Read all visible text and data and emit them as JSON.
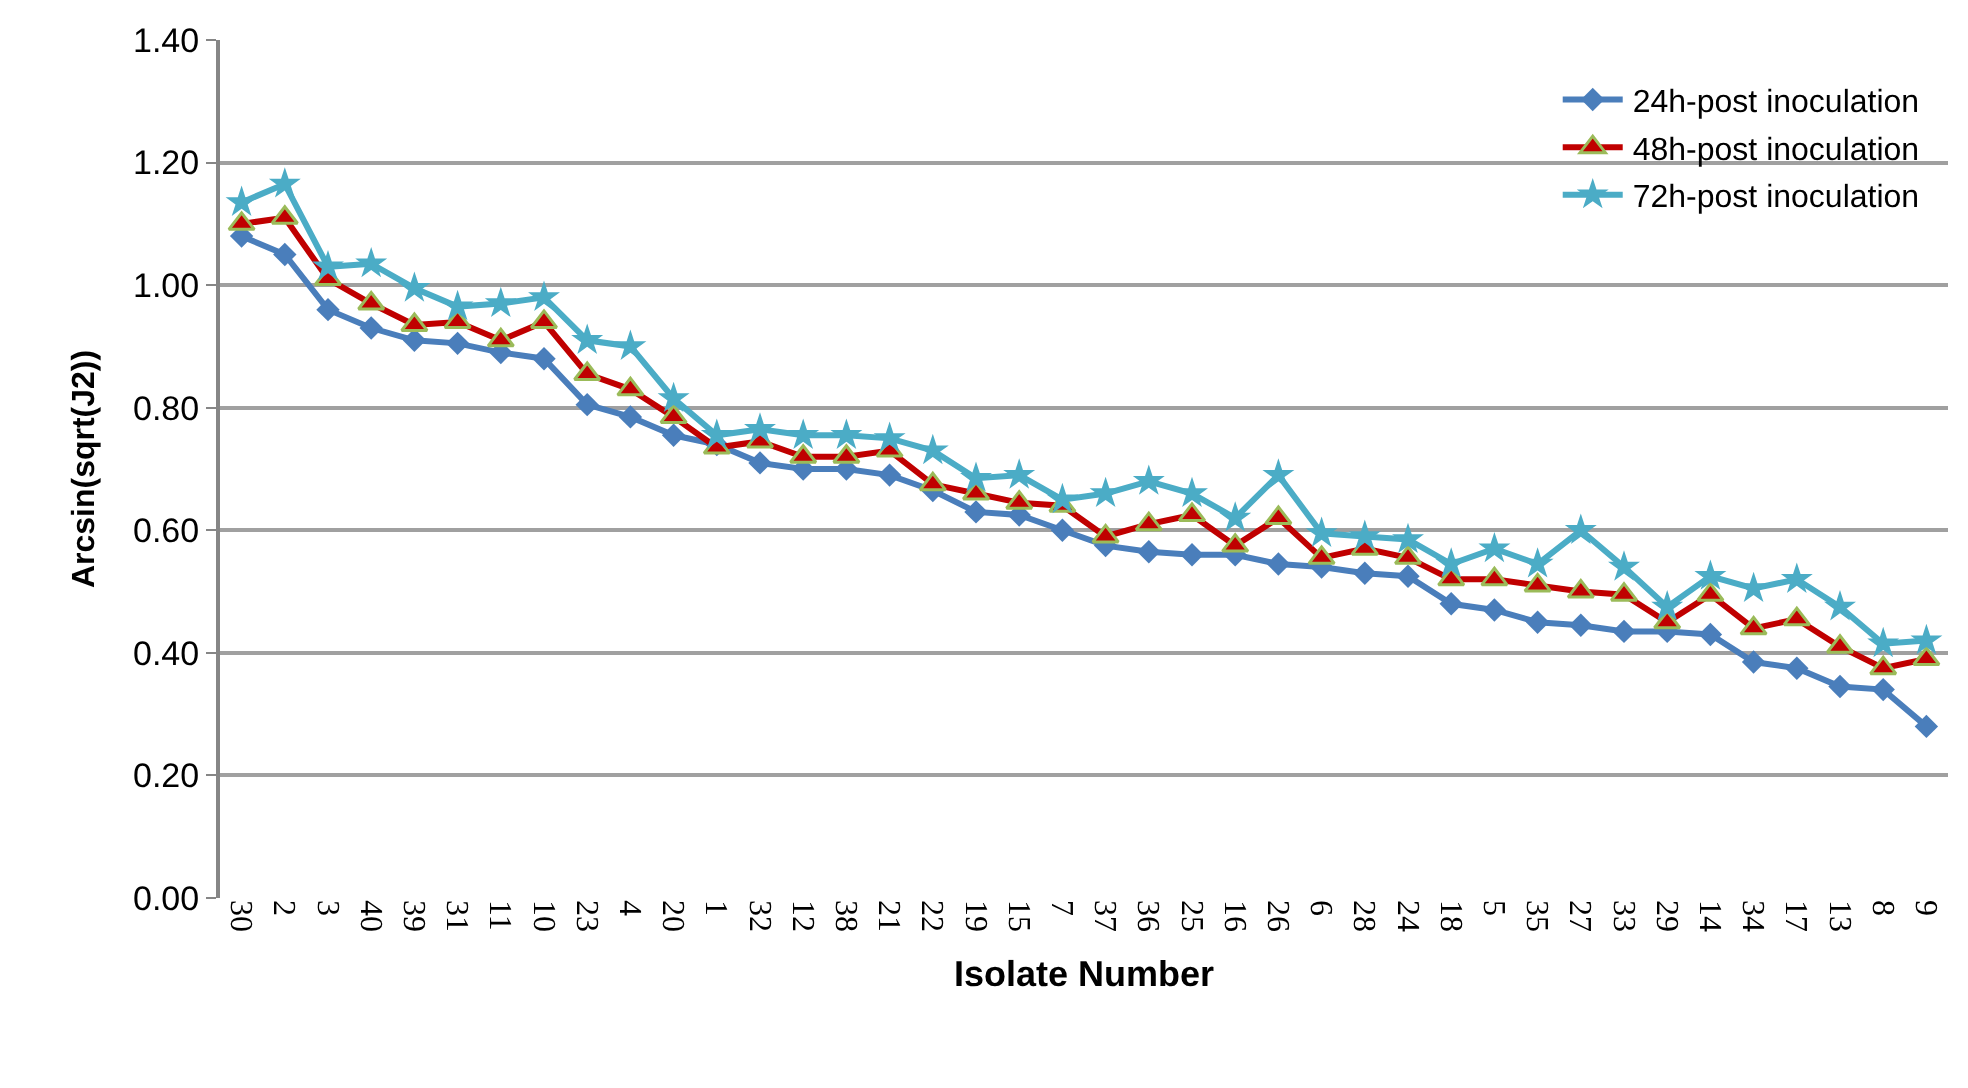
{
  "chart_data": {
    "type": "line",
    "xlabel": "Isolate Number",
    "ylabel": "Arcsin(sqrt(J2))",
    "categories": [
      "30",
      "2",
      "3",
      "40",
      "39",
      "31",
      "11",
      "10",
      "23",
      "4",
      "20",
      "1",
      "32",
      "12",
      "38",
      "21",
      "22",
      "19",
      "15",
      "7",
      "37",
      "36",
      "25",
      "16",
      "26",
      "6",
      "28",
      "24",
      "18",
      "5",
      "35",
      "27",
      "33",
      "29",
      "14",
      "34",
      "17",
      "13",
      "8",
      "9"
    ],
    "series": [
      {
        "name": "24h-post inoculation",
        "color": "#4a7ebb",
        "marker": "diamond",
        "values": [
          1.08,
          1.05,
          0.96,
          0.93,
          0.91,
          0.905,
          0.89,
          0.88,
          0.805,
          0.785,
          0.755,
          0.74,
          0.71,
          0.7,
          0.7,
          0.69,
          0.665,
          0.63,
          0.625,
          0.6,
          0.575,
          0.565,
          0.56,
          0.56,
          0.545,
          0.54,
          0.53,
          0.525,
          0.48,
          0.47,
          0.45,
          0.445,
          0.435,
          0.435,
          0.43,
          0.385,
          0.375,
          0.345,
          0.34,
          0.28
        ]
      },
      {
        "name": "48h-post inoculation",
        "color": "#c00000",
        "marker": "triangle",
        "values": [
          1.1,
          1.11,
          1.01,
          0.97,
          0.935,
          0.94,
          0.91,
          0.94,
          0.855,
          0.83,
          0.785,
          0.735,
          0.745,
          0.72,
          0.72,
          0.73,
          0.675,
          0.66,
          0.645,
          0.64,
          0.59,
          0.61,
          0.625,
          0.575,
          0.62,
          0.555,
          0.57,
          0.555,
          0.52,
          0.52,
          0.51,
          0.5,
          0.495,
          0.45,
          0.495,
          0.44,
          0.455,
          0.41,
          0.375,
          0.39
        ]
      },
      {
        "name": "72h-post inoculation",
        "color": "#4bacc6",
        "marker": "star",
        "values": [
          1.135,
          1.165,
          1.03,
          1.035,
          0.995,
          0.965,
          0.97,
          0.98,
          0.91,
          0.9,
          0.815,
          0.755,
          0.765,
          0.755,
          0.755,
          0.75,
          0.73,
          0.685,
          0.69,
          0.65,
          0.66,
          0.68,
          0.66,
          0.62,
          0.69,
          0.595,
          0.59,
          0.585,
          0.545,
          0.57,
          0.545,
          0.6,
          0.54,
          0.475,
          0.525,
          0.505,
          0.52,
          0.475,
          0.415,
          0.42
        ]
      }
    ],
    "ylim": [
      0,
      1.4
    ],
    "yticks": [
      {
        "value": 0,
        "label": "0.00"
      },
      {
        "value": 0.2,
        "label": "0.20"
      },
      {
        "value": 0.4,
        "label": "0.40"
      },
      {
        "value": 0.6,
        "label": "0.60"
      },
      {
        "value": 0.8,
        "label": "0.80"
      },
      {
        "value": 1.0,
        "label": "1.00"
      },
      {
        "value": 1.2,
        "label": "1.20"
      },
      {
        "value": 1.4,
        "label": "1.40"
      }
    ],
    "grid": "y",
    "legend": "top right",
    "line_style": "solid"
  }
}
